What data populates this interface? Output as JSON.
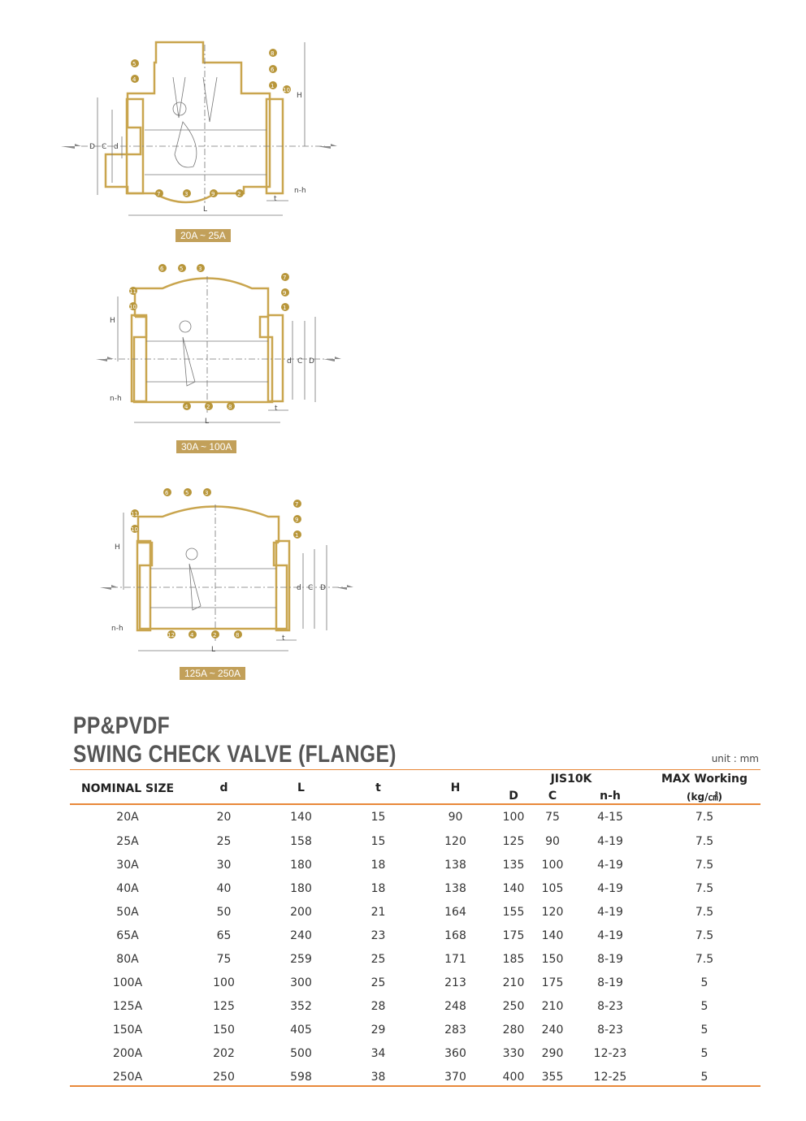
{
  "diagrams": [
    {
      "caption": "20A ~ 25A",
      "callouts": [
        "5",
        "4",
        "8",
        "6",
        "1",
        "10",
        "7",
        "3",
        "9",
        "2"
      ],
      "dims": [
        "D",
        "C",
        "d",
        "H",
        "L",
        "t",
        "n-h"
      ]
    },
    {
      "caption": "30A ~ 100A",
      "callouts": [
        "6",
        "5",
        "3",
        "7",
        "9",
        "1",
        "11",
        "10",
        "4",
        "2",
        "8"
      ],
      "dims": [
        "H",
        "d",
        "C",
        "D",
        "L",
        "t",
        "n-h"
      ]
    },
    {
      "caption": "125A ~ 250A",
      "callouts": [
        "6",
        "5",
        "3",
        "7",
        "9",
        "1",
        "11",
        "10",
        "12",
        "4",
        "2",
        "8"
      ],
      "dims": [
        "H",
        "d",
        "C",
        "D",
        "L",
        "t",
        "n-h"
      ]
    }
  ],
  "title": {
    "line1": "PP&PVDF",
    "line2": "SWING CHECK VALVE (FLANGE)"
  },
  "unit": "unit : mm",
  "table": {
    "headers": {
      "nominal": "NOMINAL SIZE",
      "d": "d",
      "L": "L",
      "t": "t",
      "H": "H",
      "jis": "JIS10K",
      "D": "D",
      "C": "C",
      "nh": "n-h",
      "max": "MAX Working",
      "max_unit": "(kg/㎠)"
    },
    "rows": [
      [
        "20A",
        "20",
        "140",
        "15",
        "90",
        "100",
        "75",
        "4-15",
        "7.5"
      ],
      [
        "25A",
        "25",
        "158",
        "15",
        "120",
        "125",
        "90",
        "4-19",
        "7.5"
      ],
      [
        "30A",
        "30",
        "180",
        "18",
        "138",
        "135",
        "100",
        "4-19",
        "7.5"
      ],
      [
        "40A",
        "40",
        "180",
        "18",
        "138",
        "140",
        "105",
        "4-19",
        "7.5"
      ],
      [
        "50A",
        "50",
        "200",
        "21",
        "164",
        "155",
        "120",
        "4-19",
        "7.5"
      ],
      [
        "65A",
        "65",
        "240",
        "23",
        "168",
        "175",
        "140",
        "4-19",
        "7.5"
      ],
      [
        "80A",
        "75",
        "259",
        "25",
        "171",
        "185",
        "150",
        "8-19",
        "7.5"
      ],
      [
        "100A",
        "100",
        "300",
        "25",
        "213",
        "210",
        "175",
        "8-19",
        "5"
      ],
      [
        "125A",
        "125",
        "352",
        "28",
        "248",
        "250",
        "210",
        "8-23",
        "5"
      ],
      [
        "150A",
        "150",
        "405",
        "29",
        "283",
        "280",
        "240",
        "8-23",
        "5"
      ],
      [
        "200A",
        "202",
        "500",
        "34",
        "360",
        "330",
        "290",
        "12-23",
        "5"
      ],
      [
        "250A",
        "250",
        "598",
        "38",
        "370",
        "400",
        "355",
        "12-25",
        "5"
      ]
    ]
  },
  "colors": {
    "accent": "#e8883a",
    "gold": "#c2a05a",
    "badge": "#b8963a"
  }
}
